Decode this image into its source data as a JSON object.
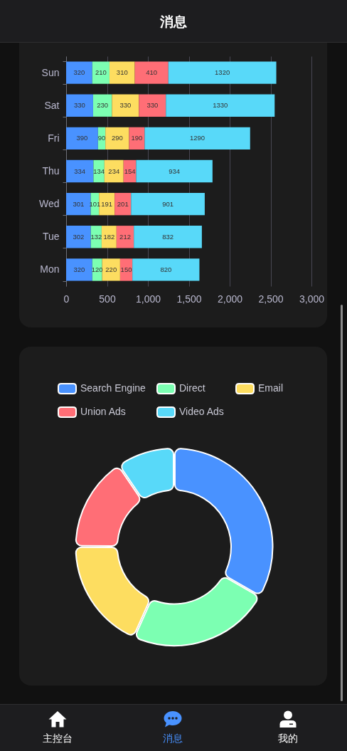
{
  "chart_data": [
    {
      "type": "other",
      "title": "消息"
    },
    {
      "type": "bar",
      "orientation": "horizontal",
      "stacked": true,
      "categories": [
        "Sun",
        "Sat",
        "Fri",
        "Thu",
        "Wed",
        "Tue",
        "Mon"
      ],
      "series": [
        {
          "color": "#4992ff",
          "values": [
            320,
            330,
            390,
            334,
            301,
            302,
            320
          ]
        },
        {
          "color": "#7cffb2",
          "values": [
            210,
            230,
            90,
            134,
            101,
            132,
            120
          ]
        },
        {
          "color": "#fddd60",
          "values": [
            310,
            330,
            290,
            234,
            191,
            182,
            220
          ]
        },
        {
          "color": "#ff6e76",
          "values": [
            410,
            330,
            190,
            154,
            201,
            212,
            150
          ]
        },
        {
          "color": "#58d9f9",
          "values": [
            1320,
            1330,
            1290,
            934,
            901,
            832,
            820
          ]
        }
      ],
      "xlim": [
        0,
        3000
      ],
      "xticks": [
        0,
        500,
        {
          "value": 1000,
          "label": "1,000"
        },
        {
          "value": 1500,
          "label": "1,500"
        },
        {
          "value": 2000,
          "label": "2,000"
        },
        {
          "value": 2500,
          "label": "2,500"
        },
        {
          "value": 3000,
          "label": "3,000"
        }
      ],
      "grid": "x",
      "data_labels": true
    },
    {
      "type": "donut",
      "categories": [
        "Search Engine",
        "Direct",
        "Email",
        "Union Ads",
        "Video Ads"
      ],
      "values": [
        33.3,
        23.4,
        18.4,
        15.4,
        9.5
      ],
      "colors": [
        "#4992ff",
        "#7cffb2",
        "#fddd60",
        "#ff6e76",
        "#58d9f9"
      ],
      "legend": "top"
    },
    {
      "type": "other",
      "annotations": [
        "主控台",
        "消息",
        "我的"
      ]
    }
  ]
}
